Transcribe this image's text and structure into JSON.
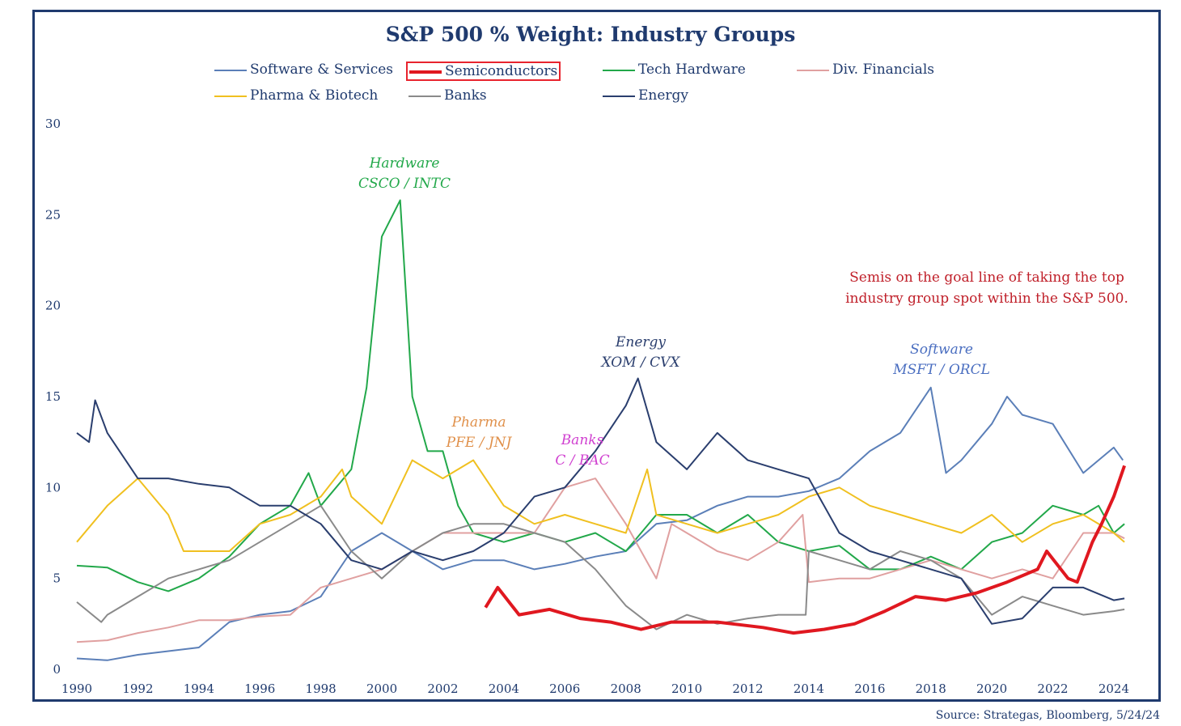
{
  "title": "S&P 500 % Weight: Industry Groups",
  "source": "Source: Strategas, Bloomberg, 5/24/24",
  "callout": [
    "Semis on the goal line of taking the top",
    "industry group spot within the S&P 500."
  ],
  "annotations": {
    "hardware": [
      "Hardware",
      "CSCO / INTC"
    ],
    "pharma": [
      "Pharma",
      "PFE / JNJ"
    ],
    "banks": [
      "Banks",
      "C / BAC"
    ],
    "energy": [
      "Energy",
      "XOM / CVX"
    ],
    "software": [
      "Software",
      "MSFT / ORCL"
    ]
  },
  "chart_data": {
    "type": "line",
    "title": "S&P 500 % Weight: Industry Groups",
    "xlabel": "",
    "ylabel": "",
    "xlim": [
      1990,
      2024.4
    ],
    "ylim": [
      0,
      30
    ],
    "xticks": [
      "1990",
      "1992",
      "1994",
      "1996",
      "1998",
      "2000",
      "2002",
      "2004",
      "2006",
      "2008",
      "2010",
      "2012",
      "2014",
      "2016",
      "2018",
      "2020",
      "2022",
      "2024"
    ],
    "yticks": [
      "0",
      "5",
      "10",
      "15",
      "20",
      "25",
      "30"
    ],
    "grid": false,
    "legend": "top",
    "series": [
      {
        "name": "Software & Services",
        "color": "#5b7fb8",
        "points": [
          [
            1990,
            0.6
          ],
          [
            1991,
            0.5
          ],
          [
            1992,
            0.8
          ],
          [
            1993,
            1.0
          ],
          [
            1994,
            1.2
          ],
          [
            1995,
            2.6
          ],
          [
            1996,
            3.0
          ],
          [
            1997,
            3.2
          ],
          [
            1998,
            4.0
          ],
          [
            1999,
            6.5
          ],
          [
            2000,
            7.5
          ],
          [
            2001,
            6.5
          ],
          [
            2002,
            5.5
          ],
          [
            2003,
            6.0
          ],
          [
            2004,
            6.0
          ],
          [
            2005,
            5.5
          ],
          [
            2006,
            5.8
          ],
          [
            2007,
            6.2
          ],
          [
            2008,
            6.5
          ],
          [
            2009,
            8.0
          ],
          [
            2010,
            8.2
          ],
          [
            2011,
            9.0
          ],
          [
            2012,
            9.5
          ],
          [
            2013,
            9.5
          ],
          [
            2014,
            9.8
          ],
          [
            2015,
            10.5
          ],
          [
            2016,
            12.0
          ],
          [
            2017,
            13.0
          ],
          [
            2018,
            15.5
          ],
          [
            2018.5,
            10.8
          ],
          [
            2019,
            11.5
          ],
          [
            2020,
            13.5
          ],
          [
            2020.5,
            15.0
          ],
          [
            2021,
            14.0
          ],
          [
            2022,
            13.5
          ],
          [
            2023,
            10.8
          ],
          [
            2024,
            12.2
          ],
          [
            2024.3,
            11.5
          ]
        ]
      },
      {
        "name": "Semiconductors",
        "color": "#e01820",
        "points": [
          [
            2003.4,
            3.4
          ],
          [
            2003.8,
            4.5
          ],
          [
            2004.5,
            3.0
          ],
          [
            2005.5,
            3.3
          ],
          [
            2006.5,
            2.8
          ],
          [
            2007.5,
            2.6
          ],
          [
            2008.5,
            2.2
          ],
          [
            2009.5,
            2.6
          ],
          [
            2011,
            2.6
          ],
          [
            2012.5,
            2.3
          ],
          [
            2013.5,
            2.0
          ],
          [
            2014.5,
            2.2
          ],
          [
            2015.5,
            2.5
          ],
          [
            2016.5,
            3.2
          ],
          [
            2017.5,
            4.0
          ],
          [
            2018.5,
            3.8
          ],
          [
            2019.5,
            4.2
          ],
          [
            2020.5,
            4.8
          ],
          [
            2021.5,
            5.5
          ],
          [
            2021.8,
            6.5
          ],
          [
            2022.5,
            5.0
          ],
          [
            2022.8,
            4.8
          ],
          [
            2023.3,
            7.0
          ],
          [
            2023.6,
            8.0
          ],
          [
            2024,
            9.5
          ],
          [
            2024.35,
            11.2
          ]
        ]
      },
      {
        "name": "Tech Hardware",
        "color": "#22a84a",
        "points": [
          [
            1990,
            5.7
          ],
          [
            1991,
            5.6
          ],
          [
            1992,
            4.8
          ],
          [
            1993,
            4.3
          ],
          [
            1994,
            5.0
          ],
          [
            1995,
            6.2
          ],
          [
            1996,
            8.0
          ],
          [
            1997,
            9.0
          ],
          [
            1997.6,
            10.8
          ],
          [
            1998,
            9.0
          ],
          [
            1999,
            11.0
          ],
          [
            1999.5,
            15.5
          ],
          [
            2000,
            23.8
          ],
          [
            2000.6,
            25.8
          ],
          [
            2001,
            15.0
          ],
          [
            2001.5,
            12.0
          ],
          [
            2002,
            12.0
          ],
          [
            2002.5,
            9.0
          ],
          [
            2003,
            7.5
          ],
          [
            2004,
            7.0
          ],
          [
            2005,
            7.5
          ],
          [
            2006,
            7.0
          ],
          [
            2007,
            7.5
          ],
          [
            2008,
            6.5
          ],
          [
            2009,
            8.5
          ],
          [
            2010,
            8.5
          ],
          [
            2011,
            7.5
          ],
          [
            2012,
            8.5
          ],
          [
            2013,
            7.0
          ],
          [
            2014,
            6.5
          ],
          [
            2015,
            6.8
          ],
          [
            2016,
            5.5
          ],
          [
            2017,
            5.5
          ],
          [
            2018,
            6.2
          ],
          [
            2019,
            5.5
          ],
          [
            2020,
            7.0
          ],
          [
            2021,
            7.5
          ],
          [
            2022,
            9.0
          ],
          [
            2023,
            8.5
          ],
          [
            2023.5,
            9.0
          ],
          [
            2024,
            7.5
          ],
          [
            2024.35,
            8.0
          ]
        ]
      },
      {
        "name": "Div. Financials",
        "color": "#e0a0a0",
        "points": [
          [
            1990,
            1.5
          ],
          [
            1991,
            1.6
          ],
          [
            1992,
            2.0
          ],
          [
            1993,
            2.3
          ],
          [
            1994,
            2.7
          ],
          [
            1995,
            2.7
          ],
          [
            1996,
            2.9
          ],
          [
            1997,
            3.0
          ],
          [
            1998,
            4.5
          ],
          [
            1999,
            5.0
          ],
          [
            2000,
            5.5
          ],
          [
            2001,
            6.5
          ],
          [
            2002,
            7.5
          ],
          [
            2003,
            7.5
          ],
          [
            2004,
            7.5
          ],
          [
            2005,
            7.5
          ],
          [
            2006,
            10.0
          ],
          [
            2007,
            10.5
          ],
          [
            2008,
            8.0
          ],
          [
            2009,
            5.0
          ],
          [
            2009.5,
            8.0
          ],
          [
            2010,
            7.5
          ],
          [
            2011,
            6.5
          ],
          [
            2012,
            6.0
          ],
          [
            2013,
            7.0
          ],
          [
            2013.8,
            8.5
          ],
          [
            2014,
            4.8
          ],
          [
            2015,
            5.0
          ],
          [
            2016,
            5.0
          ],
          [
            2017,
            5.5
          ],
          [
            2018,
            6.0
          ],
          [
            2019,
            5.5
          ],
          [
            2020,
            5.0
          ],
          [
            2021,
            5.5
          ],
          [
            2022,
            5.0
          ],
          [
            2023,
            7.5
          ],
          [
            2024,
            7.5
          ],
          [
            2024.35,
            7.2
          ]
        ]
      },
      {
        "name": "Pharma & Biotech",
        "color": "#f0c020",
        "points": [
          [
            1990,
            7.0
          ],
          [
            1991,
            9.0
          ],
          [
            1992,
            10.5
          ],
          [
            1993,
            8.5
          ],
          [
            1993.5,
            6.5
          ],
          [
            1994,
            6.5
          ],
          [
            1995,
            6.5
          ],
          [
            1996,
            8.0
          ],
          [
            1997,
            8.5
          ],
          [
            1998,
            9.5
          ],
          [
            1998.7,
            11.0
          ],
          [
            1999,
            9.5
          ],
          [
            2000,
            8.0
          ],
          [
            2001,
            11.5
          ],
          [
            2002,
            10.5
          ],
          [
            2003,
            11.5
          ],
          [
            2004,
            9.0
          ],
          [
            2005,
            8.0
          ],
          [
            2006,
            8.5
          ],
          [
            2007,
            8.0
          ],
          [
            2008,
            7.5
          ],
          [
            2008.7,
            11.0
          ],
          [
            2009,
            8.5
          ],
          [
            2010,
            8.0
          ],
          [
            2011,
            7.5
          ],
          [
            2012,
            8.0
          ],
          [
            2013,
            8.5
          ],
          [
            2014,
            9.5
          ],
          [
            2015,
            10.0
          ],
          [
            2016,
            9.0
          ],
          [
            2017,
            8.5
          ],
          [
            2018,
            8.0
          ],
          [
            2019,
            7.5
          ],
          [
            2020,
            8.5
          ],
          [
            2021,
            7.0
          ],
          [
            2022,
            8.0
          ],
          [
            2023,
            8.5
          ],
          [
            2024,
            7.5
          ],
          [
            2024.35,
            7.0
          ]
        ]
      },
      {
        "name": "Banks",
        "color": "#8a8a8a",
        "points": [
          [
            1990,
            3.7
          ],
          [
            1990.8,
            2.6
          ],
          [
            1991,
            3.0
          ],
          [
            1992,
            4.0
          ],
          [
            1993,
            5.0
          ],
          [
            1994,
            5.5
          ],
          [
            1995,
            6.0
          ],
          [
            1996,
            7.0
          ],
          [
            1997,
            8.0
          ],
          [
            1998,
            9.0
          ],
          [
            1999,
            6.5
          ],
          [
            2000,
            5.0
          ],
          [
            2001,
            6.5
          ],
          [
            2002,
            7.5
          ],
          [
            2003,
            8.0
          ],
          [
            2004,
            8.0
          ],
          [
            2005,
            7.5
          ],
          [
            2006,
            7.0
          ],
          [
            2007,
            5.5
          ],
          [
            2008,
            3.5
          ],
          [
            2009,
            2.2
          ],
          [
            2010,
            3.0
          ],
          [
            2011,
            2.5
          ],
          [
            2012,
            2.8
          ],
          [
            2013,
            3.0
          ],
          [
            2013.9,
            3.0
          ],
          [
            2014,
            6.5
          ],
          [
            2015,
            6.0
          ],
          [
            2016,
            5.5
          ],
          [
            2017,
            6.5
          ],
          [
            2018,
            6.0
          ],
          [
            2019,
            5.0
          ],
          [
            2020,
            3.0
          ],
          [
            2021,
            4.0
          ],
          [
            2022,
            3.5
          ],
          [
            2023,
            3.0
          ],
          [
            2024,
            3.2
          ],
          [
            2024.35,
            3.3
          ]
        ]
      },
      {
        "name": "Energy",
        "color": "#2a3e6e",
        "points": [
          [
            1990,
            13.0
          ],
          [
            1990.4,
            12.5
          ],
          [
            1990.6,
            14.8
          ],
          [
            1991,
            13.0
          ],
          [
            1992,
            10.5
          ],
          [
            1993,
            10.5
          ],
          [
            1994,
            10.2
          ],
          [
            1995,
            10.0
          ],
          [
            1996,
            9.0
          ],
          [
            1997,
            9.0
          ],
          [
            1998,
            8.0
          ],
          [
            1999,
            6.0
          ],
          [
            2000,
            5.5
          ],
          [
            2001,
            6.5
          ],
          [
            2002,
            6.0
          ],
          [
            2003,
            6.5
          ],
          [
            2004,
            7.5
          ],
          [
            2005,
            9.5
          ],
          [
            2006,
            10.0
          ],
          [
            2007,
            12.0
          ],
          [
            2008,
            14.5
          ],
          [
            2008.4,
            16.0
          ],
          [
            2009,
            12.5
          ],
          [
            2010,
            11.0
          ],
          [
            2011,
            13.0
          ],
          [
            2012,
            11.5
          ],
          [
            2013,
            11.0
          ],
          [
            2014,
            10.5
          ],
          [
            2015,
            7.5
          ],
          [
            2016,
            6.5
          ],
          [
            2017,
            6.0
          ],
          [
            2018,
            5.5
          ],
          [
            2019,
            5.0
          ],
          [
            2020,
            2.5
          ],
          [
            2021,
            2.8
          ],
          [
            2022,
            4.5
          ],
          [
            2023,
            4.5
          ],
          [
            2024,
            3.8
          ],
          [
            2024.35,
            3.9
          ]
        ]
      }
    ]
  }
}
